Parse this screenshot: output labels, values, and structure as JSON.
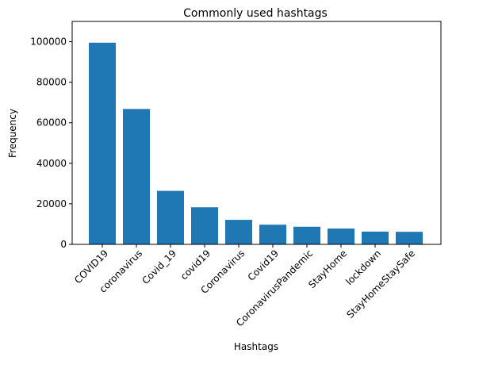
{
  "chart_data": {
    "type": "bar",
    "title": "Commonly used hashtags",
    "xlabel": "Hashtags",
    "ylabel": "Frequency",
    "categories": [
      "COVID19",
      "coronavirus",
      "Covid_19",
      "covid19",
      "Coronavirus",
      "Covid19",
      "CoronavirusPandemic",
      "StayHome",
      "lockdown",
      "StayHomeStaySafe"
    ],
    "values": [
      99500,
      66800,
      26400,
      18300,
      12100,
      9700,
      8700,
      7800,
      6300,
      6200
    ],
    "ylim": [
      0,
      110000
    ],
    "yticks": [
      0,
      20000,
      40000,
      60000,
      80000,
      100000
    ],
    "ytick_labels": [
      "0",
      "20000",
      "40000",
      "60000",
      "80000",
      "100000"
    ],
    "bar_color": "#1f77b4",
    "grid": false,
    "legend": "none"
  }
}
